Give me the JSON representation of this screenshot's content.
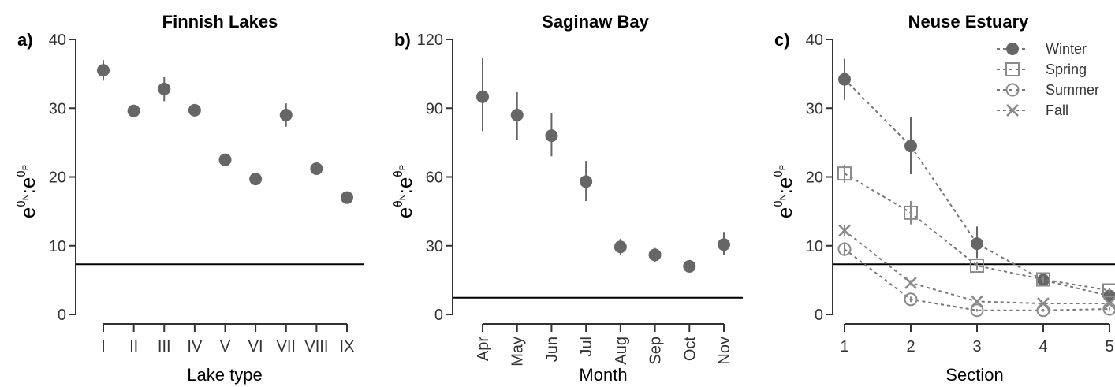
{
  "chart_data": [
    {
      "type": "scatter",
      "panel_label": "a)",
      "title": "Finnish Lakes",
      "xlabel": "Lake type",
      "ylabel": {
        "base": "e",
        "numerator_exp": "θ",
        "numerator_sub": "N",
        "separator": ":",
        "denominator_exp": "θ",
        "denominator_sub": "P"
      },
      "categories": [
        "I",
        "II",
        "III",
        "IV",
        "V",
        "VI",
        "VII",
        "VIII",
        "IX"
      ],
      "values": [
        35.5,
        29.6,
        32.8,
        29.7,
        22.5,
        19.7,
        29.0,
        21.2,
        17.0
      ],
      "error_low": [
        34.0,
        29.3,
        31.0,
        29.5,
        22.3,
        19.5,
        27.3,
        21.0,
        16.8
      ],
      "error_high": [
        37.0,
        30.0,
        34.5,
        30.0,
        22.7,
        20.0,
        30.7,
        21.5,
        17.2
      ],
      "reference_line": 7.3,
      "ylim": [
        0,
        40
      ],
      "yticks": [
        0,
        10,
        20,
        30,
        40
      ],
      "color": "#666666"
    },
    {
      "type": "scatter",
      "panel_label": "b)",
      "title": "Saginaw Bay",
      "xlabel": "Month",
      "ylabel": {
        "base": "e",
        "numerator_exp": "θ",
        "numerator_sub": "N",
        "separator": ":",
        "denominator_exp": "θ",
        "denominator_sub": "P"
      },
      "categories": [
        "Apr",
        "May",
        "Jun",
        "Jul",
        "Aug",
        "Sep",
        "Oct",
        "Nov"
      ],
      "values": [
        95,
        87,
        78,
        58,
        29.5,
        26,
        21,
        30.5
      ],
      "error_low": [
        80,
        76,
        69,
        49.5,
        26,
        23,
        20,
        26
      ],
      "error_high": [
        112,
        97,
        88,
        67,
        33,
        29,
        22,
        36
      ],
      "reference_line": 7.3,
      "ylim": [
        0,
        120
      ],
      "yticks": [
        0,
        30,
        60,
        90,
        120
      ],
      "color": "#666666"
    },
    {
      "type": "line",
      "panel_label": "c)",
      "title": "Neuse Estuary",
      "xlabel": "Section",
      "ylabel": {
        "base": "e",
        "numerator_exp": "θ",
        "numerator_sub": "N",
        "separator": ":",
        "denominator_exp": "θ",
        "denominator_sub": "P"
      },
      "x": [
        1,
        2,
        3,
        4,
        5
      ],
      "xlim": [
        1,
        5
      ],
      "xticks": [
        1,
        2,
        3,
        4,
        5
      ],
      "ylim": [
        0,
        40
      ],
      "yticks": [
        0,
        10,
        20,
        30,
        40
      ],
      "reference_line": 7.3,
      "legend_position": "top-right",
      "series": [
        {
          "name": "Winter",
          "marker": "filled-circle",
          "values": [
            34.2,
            24.5,
            10.3,
            5.0,
            2.7
          ],
          "error_low": [
            31.2,
            20.4,
            8.2,
            4.2,
            2.1
          ],
          "error_high": [
            37.2,
            28.7,
            12.8,
            5.9,
            3.4
          ],
          "color": "#666666"
        },
        {
          "name": "Spring",
          "marker": "open-square",
          "values": [
            20.5,
            14.8,
            7.1,
            5.1,
            3.5
          ],
          "error_low": [
            19.2,
            13.1,
            6.5,
            4.6,
            3.1
          ],
          "error_high": [
            21.8,
            16.5,
            7.7,
            5.6,
            3.9
          ],
          "color": "#8a8a8a"
        },
        {
          "name": "Summer",
          "marker": "open-circle",
          "values": [
            9.5,
            2.2,
            0.6,
            0.6,
            0.8
          ],
          "error_low": [
            8.5,
            1.8,
            0.4,
            0.4,
            0.6
          ],
          "error_high": [
            10.5,
            2.6,
            0.8,
            0.8,
            1.0
          ],
          "color": "#8a8a8a"
        },
        {
          "name": "Fall",
          "marker": "cross",
          "values": [
            12.2,
            4.6,
            1.9,
            1.6,
            1.6
          ],
          "error_low": [
            11.4,
            4.2,
            1.6,
            1.4,
            1.4
          ],
          "error_high": [
            13.0,
            5.0,
            2.2,
            1.8,
            1.8
          ],
          "color": "#8a8a8a"
        }
      ]
    }
  ]
}
